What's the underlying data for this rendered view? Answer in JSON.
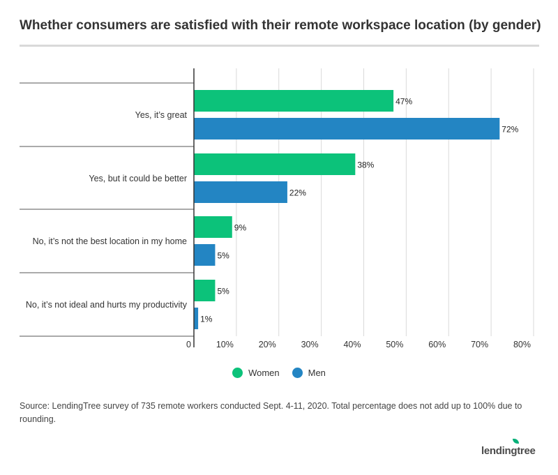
{
  "title": "Whether consumers are satisfied with their remote workspace location (by gender)",
  "source": "Source: LendingTree survey of 735 remote workers conducted Sept. 4-11, 2020. Total percentage does not add up to 100% due to rounding.",
  "logo_text": "lendingtree",
  "colors": {
    "women": "#0cc27a",
    "men": "#2385c3",
    "grid": "#d9d9d9",
    "axis": "#333333"
  },
  "chart_data": {
    "type": "bar",
    "orientation": "horizontal",
    "categories": [
      "Yes, it’s great",
      "Yes, but it could be better",
      "No, it’s not the best location in my home",
      "No, it’s not ideal and hurts my productivity"
    ],
    "series": [
      {
        "name": "Women",
        "values": [
          47,
          38,
          9,
          5
        ],
        "labels": [
          "47%",
          "38%",
          "9%",
          "5%"
        ]
      },
      {
        "name": "Men",
        "values": [
          72,
          22,
          5,
          1
        ],
        "labels": [
          "72%",
          "22%",
          "5%",
          "1%"
        ]
      }
    ],
    "xlim": [
      0,
      80
    ],
    "xticks": [
      0,
      10,
      20,
      30,
      40,
      50,
      60,
      70,
      80
    ],
    "xtick_labels": [
      "0",
      "10%",
      "20%",
      "30%",
      "40%",
      "50%",
      "60%",
      "70%",
      "80%"
    ],
    "grid": true,
    "legend_position": "bottom-center"
  }
}
